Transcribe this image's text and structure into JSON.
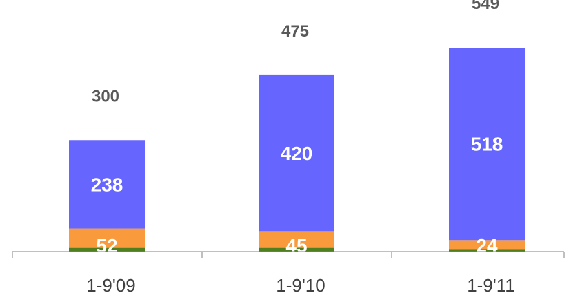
{
  "chart_data": {
    "type": "bar",
    "stacked": true,
    "categories": [
      "1-9'09",
      "1-9'10",
      "1-9'11"
    ],
    "totals": [
      300,
      475,
      549
    ],
    "series": [
      {
        "values": [
          10,
          10,
          7
        ],
        "color": "#4f7f1e",
        "labels": [
          "",
          "",
          ""
        ]
      },
      {
        "values": [
          52,
          45,
          24
        ],
        "color": "#f99a3c",
        "labels": [
          "52",
          "45",
          "24"
        ]
      },
      {
        "values": [
          238,
          420,
          518
        ],
        "color": "#6666ff",
        "labels": [
          "238",
          "420",
          "518"
        ]
      }
    ],
    "ylim": [
      0,
      549
    ],
    "grid": false,
    "legend": "none"
  }
}
